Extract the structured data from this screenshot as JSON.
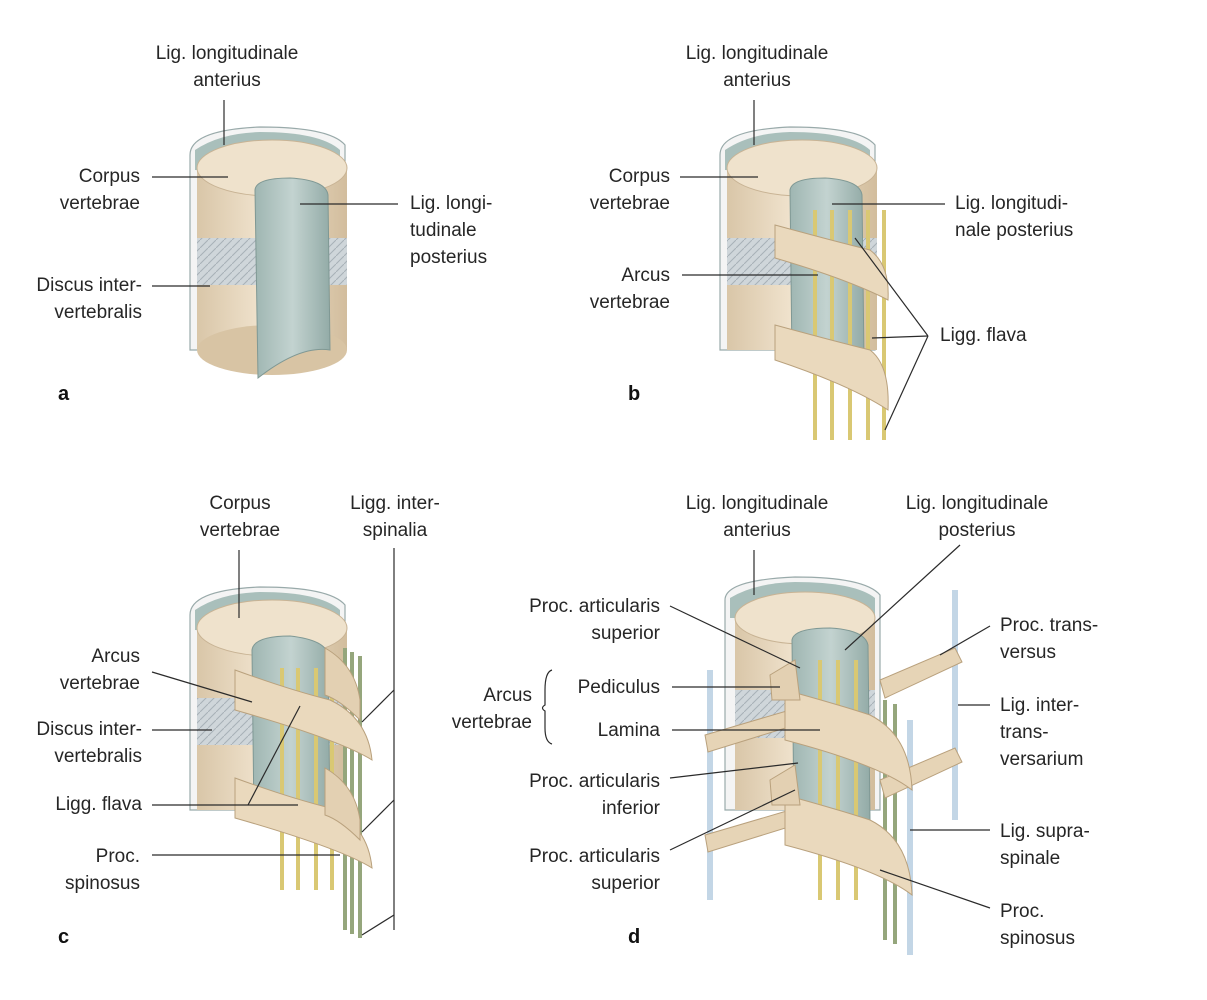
{
  "figure": {
    "colors": {
      "bone": "#eedfc8",
      "bone_dark": "#cdb799",
      "ligament_blue": "#b9cbc8",
      "ligament_blue_dark": "#8aa4a0",
      "disc": "#c9d1d6",
      "flava_yellow": "#e6da8e",
      "interspinal_green": "#9dad86",
      "intertrans_blue": "#c9d9e6",
      "leader": "#2b2b2b"
    },
    "panels": {
      "a": {
        "letter": "a",
        "labels": {
          "lig_long_ant": "Lig. longitudinale\nanterius",
          "corpus": "Corpus\nvertebrae",
          "discus": "Discus inter-\nvertebralis",
          "lig_long_post": "Lig. longi-\ntudinale\nposterius"
        }
      },
      "b": {
        "letter": "b",
        "labels": {
          "lig_long_ant": "Lig. longitudinale\nanterius",
          "corpus": "Corpus\nvertebrae",
          "arcus": "Arcus\nvertebrae",
          "lig_long_post": "Lig. longitudi-\nnale posterius",
          "ligg_flava": "Ligg. flava"
        }
      },
      "c": {
        "letter": "c",
        "labels": {
          "corpus": "Corpus\nvertebrae",
          "ligg_interspinalia": "Ligg. inter-\nspinalia",
          "arcus": "Arcus\nvertebrae",
          "discus": "Discus inter-\nvertebralis",
          "ligg_flava": "Ligg. flava",
          "proc_spinosus": "Proc.\nspinosus"
        }
      },
      "d": {
        "letter": "d",
        "labels": {
          "lig_long_ant": "Lig. longitudinale\nanterius",
          "lig_long_post": "Lig. longitudinale\nposterius",
          "proc_art_sup_top": "Proc. articularis\nsuperior",
          "arcus": "Arcus\nvertebrae",
          "pediculus": "Pediculus",
          "lamina": "Lamina",
          "proc_art_inf": "Proc. articularis\ninferior",
          "proc_art_sup_bottom": "Proc. articularis\nsuperior",
          "proc_transversus": "Proc. trans-\nversus",
          "lig_intertrans": "Lig. inter-\ntrans-\nversarium",
          "lig_supraspinale": "Lig. supra-\nspinale",
          "proc_spinosus": "Proc.\nspinosus"
        }
      }
    }
  }
}
